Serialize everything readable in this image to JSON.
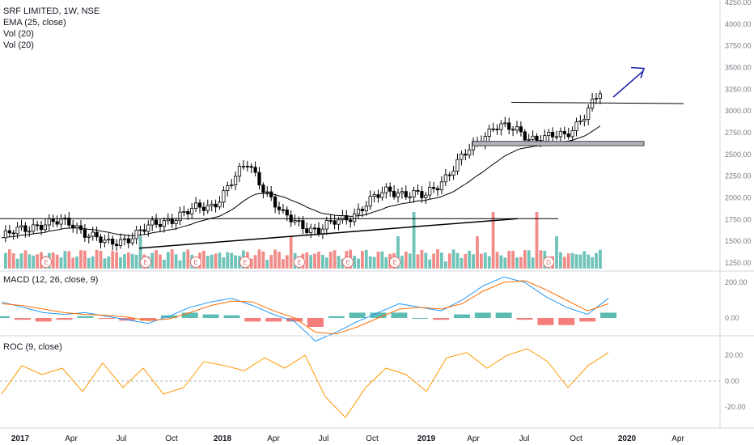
{
  "chart_data": [
    {
      "type": "candlestick",
      "title": "SRF LIMITED, 1W, NSE",
      "indicators": [
        "EMA (25, close)",
        "Vol (20)",
        "Vol (20)"
      ],
      "y_axis": {
        "range": [
          1200,
          4300
        ],
        "tick_labels": [
          "4250.00",
          "4000.00",
          "3750.00",
          "3500.00",
          "3250.00",
          "3000.00",
          "2750.00",
          "2500.00",
          "2250.00",
          "2000.00",
          "1750.00",
          "1500.00",
          "1250.00"
        ],
        "tick_values": [
          4250,
          4000,
          3750,
          3500,
          3250,
          3000,
          2750,
          2500,
          2250,
          2000,
          1750,
          1500,
          1250
        ]
      },
      "x_axis": {
        "tick_labels": [
          "2017",
          "Apr",
          "Jul",
          "Oct",
          "2018",
          "Apr",
          "Jul",
          "Oct",
          "2019",
          "Apr",
          "Jul",
          "Oct",
          "2020",
          "Apr"
        ]
      },
      "close_anchors": {
        "note_dates": [
          "2017-01",
          "2017-03",
          "2017-05",
          "2017-07",
          "2017-09",
          "2017-11",
          "2018-01",
          "2018-03",
          "2018-05",
          "2018-07",
          "2018-09",
          "2018-11",
          "2019-01",
          "2019-03",
          "2019-05",
          "2019-07",
          "2019-09",
          "2019-11"
        ],
        "values": [
          1540,
          1700,
          1710,
          1450,
          1620,
          1800,
          1920,
          2400,
          1780,
          1620,
          1820,
          2100,
          2000,
          2420,
          2850,
          2700,
          2700,
          3200
        ]
      },
      "volume_bars_colors": {
        "up": "#26a69a",
        "down": "#ef5350"
      },
      "event_markers": [
        "E",
        "E",
        "E",
        "E",
        "E",
        "E",
        "E",
        "D"
      ],
      "drawings": [
        "horizontal resistance near 1760",
        "rising trendline",
        "resistance near 3080",
        "support zone 2600-2650",
        "upward arrow toward 3500"
      ]
    },
    {
      "type": "line",
      "title": "MACD (12, 26, close, 9)",
      "y_axis": {
        "tick_labels": [
          "200.00",
          "0.00"
        ],
        "tick_values": [
          200,
          0
        ]
      },
      "series": [
        {
          "values": [
            90,
            60,
            30,
            20,
            30,
            10,
            -10,
            -30,
            10,
            60,
            90,
            110,
            70,
            20,
            -20,
            -130,
            -80,
            -20,
            30,
            80,
            60,
            40,
            100,
            180,
            230,
            200,
            120,
            60,
            20,
            110
          ]
        },
        {
          "values": [
            80,
            70,
            50,
            30,
            20,
            15,
            5,
            -15,
            -5,
            30,
            70,
            95,
            90,
            40,
            0,
            -80,
            -90,
            -50,
            0,
            50,
            60,
            50,
            80,
            150,
            200,
            210,
            160,
            100,
            40,
            80
          ]
        }
      ]
    },
    {
      "type": "line",
      "title": "ROC (9, close)",
      "y_axis": {
        "tick_labels": [
          "20.00",
          "0.00",
          "-20.00"
        ],
        "tick_values": [
          20,
          0,
          -20
        ]
      },
      "series": [
        {
          "values": [
            -10,
            12,
            5,
            10,
            -8,
            14,
            -5,
            10,
            -10,
            -5,
            15,
            12,
            8,
            18,
            10,
            20,
            -12,
            -28,
            -5,
            10,
            5,
            -8,
            18,
            22,
            10,
            20,
            25,
            15,
            -5,
            12,
            22
          ]
        }
      ]
    }
  ],
  "colors": {
    "up": "#ffffff",
    "down": "#000000",
    "macd": "#2196f3",
    "signal": "#ff6d00",
    "roc": "#ff9800",
    "arrow": "#1e22aa",
    "grid": "#e0e3eb"
  }
}
